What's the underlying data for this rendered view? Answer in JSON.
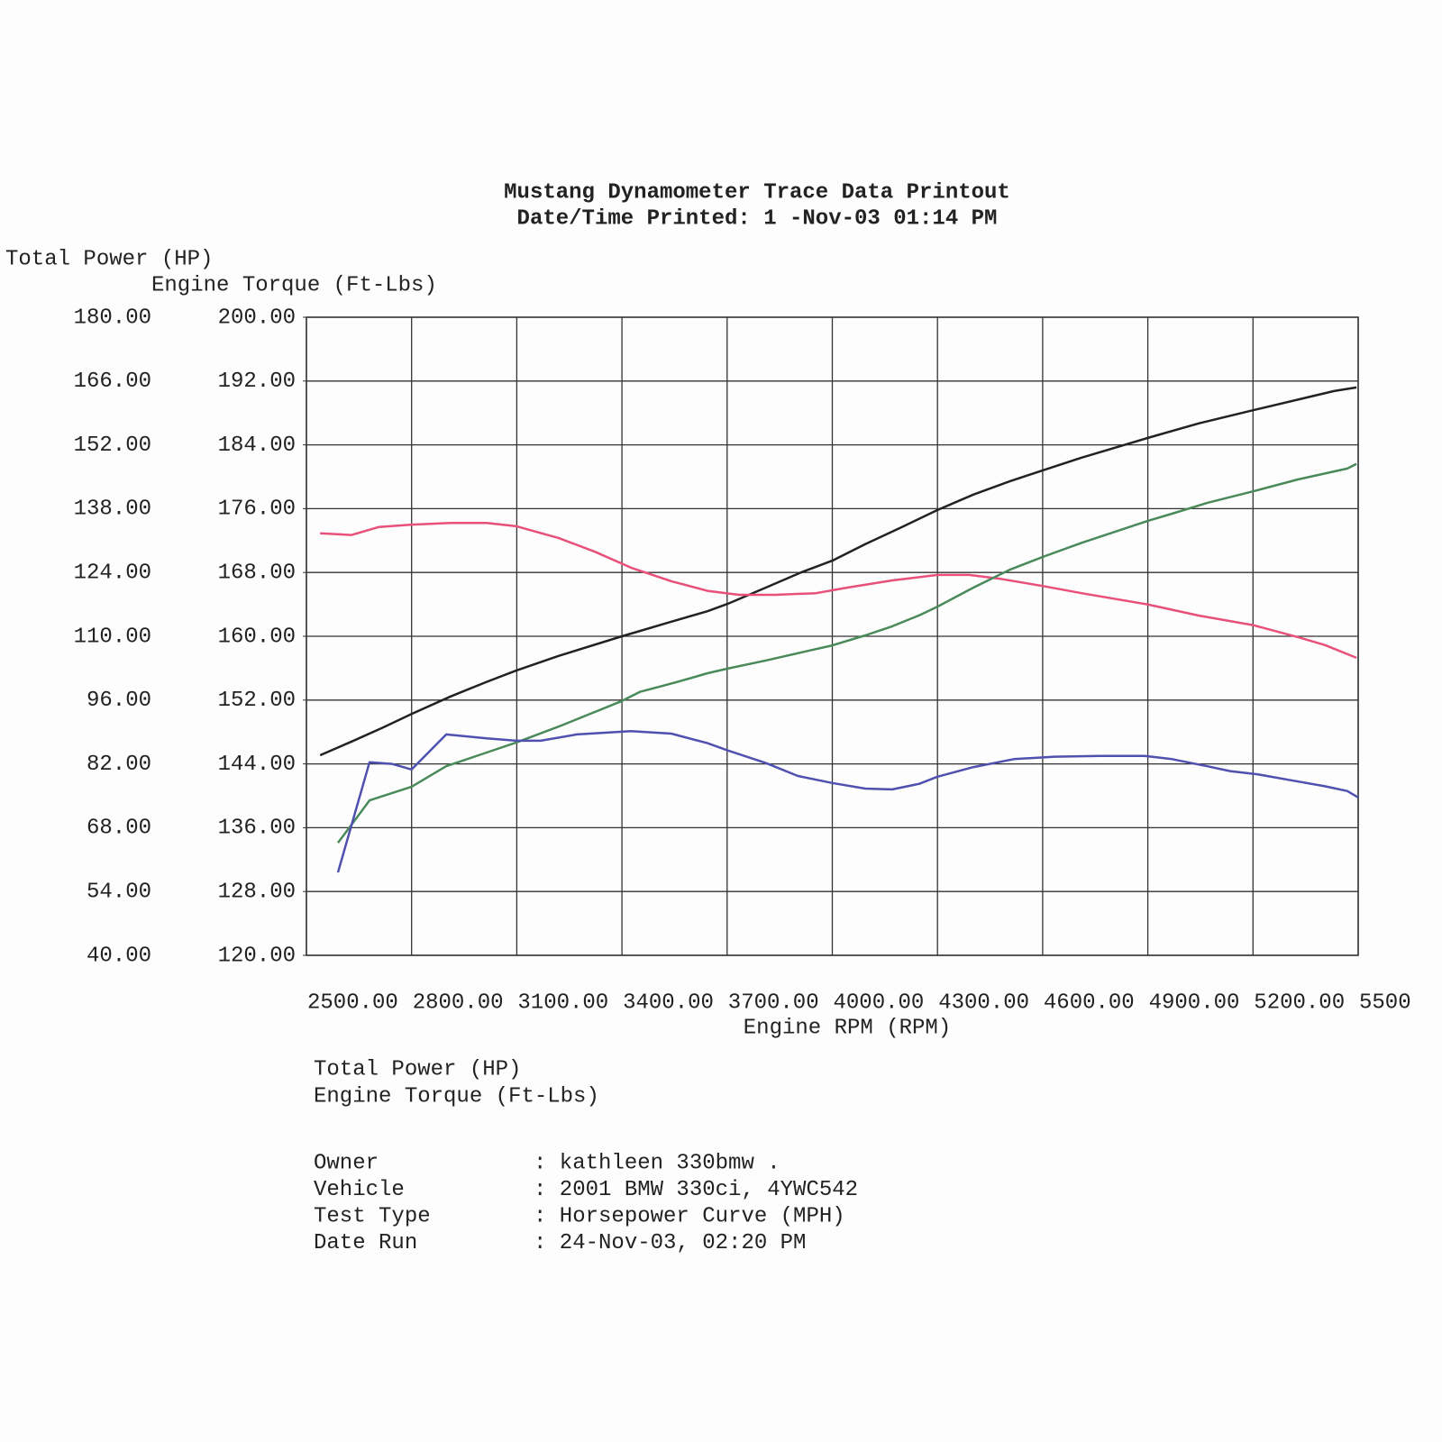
{
  "chart_data": {
    "type": "line",
    "title": "Mustang Dynamometer Trace Data Printout",
    "subtitle": "Date/Time Printed: 1 -Nov-03 01:14 PM",
    "ylabel": "Total Power (HP)",
    "y2label": "Engine Torque (Ft-Lbs)",
    "xlabel": "Engine RPM (RPM)",
    "xlim": [
      2500,
      5500
    ],
    "xticks": [
      {
        "value": 2500,
        "label": "2500.00"
      },
      {
        "value": 2800,
        "label": "2800.00"
      },
      {
        "value": 3100,
        "label": "3100.00"
      },
      {
        "value": 3400,
        "label": "3400.00"
      },
      {
        "value": 3700,
        "label": "3700.00"
      },
      {
        "value": 4000,
        "label": "4000.00"
      },
      {
        "value": 4300,
        "label": "4300.00"
      },
      {
        "value": 4600,
        "label": "4600.00"
      },
      {
        "value": 4900,
        "label": "4900.00"
      },
      {
        "value": 5200,
        "label": "5200.00"
      },
      {
        "value": 5500,
        "label": "5500"
      }
    ],
    "ylim": [
      40,
      180
    ],
    "yticks": [
      {
        "value": 40,
        "label": "40.00"
      },
      {
        "value": 54,
        "label": "54.00"
      },
      {
        "value": 68,
        "label": "68.00"
      },
      {
        "value": 82,
        "label": "82.00"
      },
      {
        "value": 96,
        "label": "96.00"
      },
      {
        "value": 110,
        "label": "110.00"
      },
      {
        "value": 124,
        "label": "124.00"
      },
      {
        "value": 138,
        "label": "138.00"
      },
      {
        "value": 152,
        "label": "152.00"
      },
      {
        "value": 166,
        "label": "166.00"
      },
      {
        "value": 180,
        "label": "180.00"
      }
    ],
    "y2lim": [
      120,
      200
    ],
    "y2ticks": [
      {
        "value": 120,
        "label": "120.00"
      },
      {
        "value": 128,
        "label": "128.00"
      },
      {
        "value": 136,
        "label": "136.00"
      },
      {
        "value": 144,
        "label": "144.00"
      },
      {
        "value": 152,
        "label": "152.00"
      },
      {
        "value": 160,
        "label": "160.00"
      },
      {
        "value": 168,
        "label": "168.00"
      },
      {
        "value": 176,
        "label": "176.00"
      },
      {
        "value": 184,
        "label": "184.00"
      },
      {
        "value": 192,
        "label": "192.00"
      },
      {
        "value": 200,
        "label": "200.00"
      }
    ],
    "ycolor": "#2b5a3a",
    "y2color": "#8a3aa0",
    "grid": true,
    "series": [
      {
        "color": "#222222",
        "x": [
          2539,
          2629,
          2719,
          2801,
          2911,
          3014,
          3099,
          3220,
          3400,
          3541,
          3644,
          3701,
          3811,
          3914,
          4000,
          4094,
          4197,
          4300,
          4403,
          4506,
          4600,
          4711,
          4899,
          5045,
          5200,
          5354,
          5431,
          5495
        ],
        "values": [
          83.9,
          86.9,
          90.0,
          93.0,
          96.8,
          100.0,
          102.5,
          105.7,
          110.0,
          113.2,
          115.5,
          117.1,
          120.7,
          124.1,
          126.6,
          130.2,
          133.9,
          137.7,
          141.1,
          144.0,
          146.4,
          149.2,
          153.5,
          156.7,
          159.6,
          162.4,
          163.8,
          164.6
        ]
      },
      {
        "color": "#e8507a",
        "axis": "y2",
        "x": [
          2539,
          2629,
          2706,
          2801,
          2911,
          3014,
          3099,
          3220,
          3323,
          3426,
          3541,
          3644,
          3734,
          3837,
          3953,
          4043,
          4171,
          4300,
          4390,
          4480,
          4600,
          4711,
          4899,
          5045,
          5200,
          5328,
          5405,
          5495
        ],
        "values": [
          172.9,
          172.7,
          173.7,
          174.0,
          174.2,
          174.2,
          173.8,
          172.3,
          170.6,
          168.6,
          166.9,
          165.7,
          165.2,
          165.2,
          165.4,
          166.1,
          167.0,
          167.7,
          167.7,
          167.2,
          166.3,
          165.4,
          164.0,
          162.6,
          161.4,
          159.9,
          158.9,
          157.3
        ]
      },
      {
        "color": "#4a8a5a",
        "x": [
          2590,
          2629,
          2680,
          2800,
          2899,
          3014,
          3099,
          3220,
          3400,
          3451,
          3554,
          3644,
          3701,
          3811,
          3914,
          4000,
          4094,
          4171,
          4248,
          4300,
          4403,
          4506,
          4600,
          4711,
          4899,
          4969,
          5071,
          5200,
          5328,
          5469,
          5495
        ],
        "values": [
          64.7,
          68.7,
          74.0,
          77.0,
          81.5,
          84.5,
          86.7,
          90.2,
          95.8,
          97.8,
          99.9,
          101.9,
          102.9,
          104.7,
          106.5,
          108.0,
          110.2,
          112.2,
          114.6,
          116.5,
          120.7,
          124.6,
          127.4,
          130.5,
          135.3,
          136.9,
          139.3,
          141.8,
          144.4,
          146.8,
          147.8
        ]
      },
      {
        "color": "#5050b0",
        "axis": "y2",
        "x": [
          2590,
          2680,
          2744,
          2800,
          2899,
          3014,
          3099,
          3168,
          3271,
          3426,
          3541,
          3644,
          3701,
          3811,
          3901,
          4000,
          4094,
          4171,
          4248,
          4300,
          4403,
          4518,
          4634,
          4763,
          4891,
          4969,
          5071,
          5135,
          5212,
          5302,
          5405,
          5469,
          5500
        ],
        "values": [
          130.4,
          144.2,
          144.0,
          143.3,
          147.7,
          147.2,
          146.9,
          146.9,
          147.7,
          148.1,
          147.8,
          146.6,
          145.7,
          144.1,
          142.5,
          141.6,
          140.9,
          140.8,
          141.5,
          142.4,
          143.6,
          144.6,
          144.9,
          145.0,
          145.0,
          144.6,
          143.7,
          143.1,
          142.7,
          142.0,
          141.2,
          140.6,
          139.8
        ]
      }
    ],
    "info": [
      {
        "label": "Owner",
        "value": ": kathleen 330bmw   ."
      },
      {
        "label": "Vehicle",
        "value": ": 2001 BMW 330ci, 4YWC542"
      },
      {
        "label": "Test Type",
        "value": ": Horsepower Curve (MPH)"
      },
      {
        "label": "Date Run",
        "value": ": 24-Nov-03, 02:20 PM"
      }
    ]
  }
}
